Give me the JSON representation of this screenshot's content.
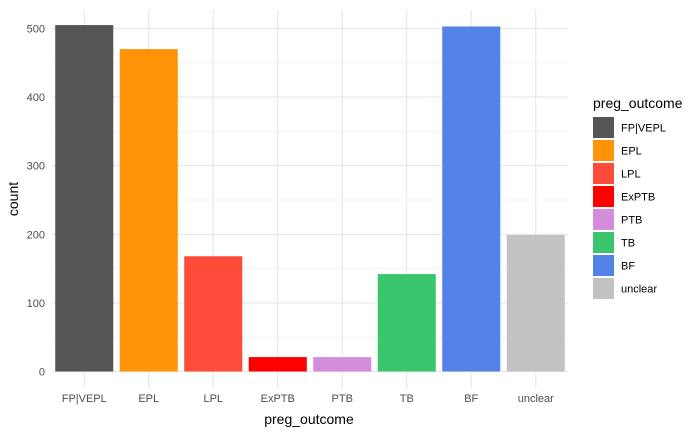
{
  "chart_data": {
    "type": "bar",
    "categories": [
      "FP|VEPL",
      "EPL",
      "LPL",
      "ExPTB",
      "PTB",
      "TB",
      "BF",
      "unclear"
    ],
    "values": [
      505,
      470,
      168,
      21,
      21,
      142,
      503,
      199
    ],
    "colors": [
      "#555555",
      "#FF9408",
      "#FF4B3A",
      "#FF0000",
      "#D48DDB",
      "#3BC66E",
      "#5483E8",
      "#C2C2C2"
    ],
    "xlabel": "preg_outcome",
    "ylabel": "count",
    "ylim": [
      0,
      520
    ],
    "yticks": [
      0,
      100,
      200,
      300,
      400,
      500
    ],
    "grid": true,
    "legend": {
      "title": "preg_outcome",
      "placement": "right",
      "entries": [
        "FP|VEPL",
        "EPL",
        "LPL",
        "ExPTB",
        "PTB",
        "TB",
        "BF",
        "unclear"
      ]
    }
  }
}
